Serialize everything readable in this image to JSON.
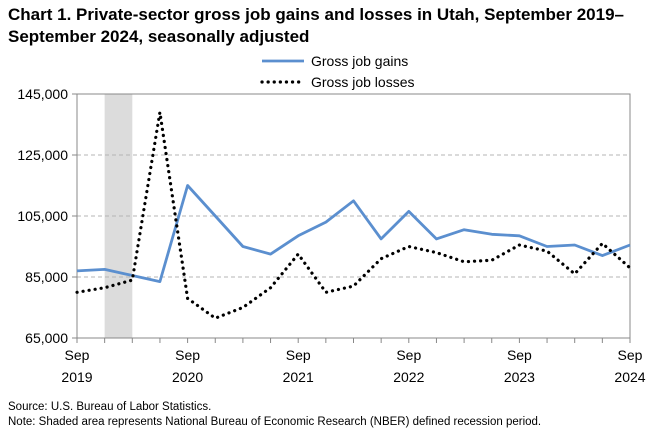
{
  "chart_data": {
    "type": "line",
    "title": "Chart 1. Private-sector gross job gains and losses in Utah, September 2019–September 2024, seasonally adjusted",
    "xlabel": "",
    "ylabel": "",
    "ylim": [
      65000,
      145000
    ],
    "yticks": [
      "145,000",
      "125,000",
      "105,000",
      "85,000",
      "65,000"
    ],
    "ytick_values": [
      145000,
      125000,
      105000,
      85000,
      65000
    ],
    "x_tick_labels": [
      {
        "month": "Sep",
        "year": "2019",
        "index": 0
      },
      {
        "month": "Sep",
        "year": "2020",
        "index": 4
      },
      {
        "month": "Sep",
        "year": "2021",
        "index": 8
      },
      {
        "month": "Sep",
        "year": "2022",
        "index": 12
      },
      {
        "month": "Sep",
        "year": "2023",
        "index": 16
      },
      {
        "month": "Sep",
        "year": "2024",
        "index": 20
      }
    ],
    "x": [
      "Sep 2019",
      "Dec 2019",
      "Mar 2020",
      "Jun 2020",
      "Sep 2020",
      "Dec 2020",
      "Mar 2021",
      "Jun 2021",
      "Sep 2021",
      "Dec 2021",
      "Mar 2022",
      "Jun 2022",
      "Sep 2022",
      "Dec 2022",
      "Mar 2023",
      "Jun 2023",
      "Sep 2023",
      "Dec 2023",
      "Mar 2024",
      "Jun 2024",
      "Sep 2024"
    ],
    "recession": {
      "start": "Dec 2019",
      "end": "Mar 2020"
    },
    "grid": true,
    "legend_position": "top-center",
    "series": [
      {
        "name": "Gross job gains",
        "style": "solid",
        "color": "#5b8fcf",
        "values": [
          87000,
          87500,
          85500,
          83500,
          115000,
          105000,
          95000,
          92500,
          98500,
          103000,
          110000,
          97500,
          106500,
          97500,
          100500,
          99000,
          98500,
          95000,
          95500,
          92000,
          95500
        ]
      },
      {
        "name": "Gross job losses",
        "style": "dotted",
        "color": "#000000",
        "values": [
          80000,
          81500,
          84000,
          139000,
          78000,
          71500,
          75000,
          81500,
          92500,
          80000,
          82000,
          91000,
          95000,
          93000,
          90000,
          90500,
          95500,
          93500,
          86000,
          96000,
          88000
        ]
      }
    ]
  },
  "notes": {
    "source": "Source: U.S. Bureau of Labor Statistics.",
    "note": "Note: Shaded area represents National Bureau of Economic Research (NBER) defined recession period."
  }
}
